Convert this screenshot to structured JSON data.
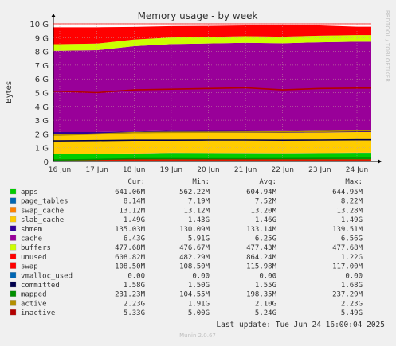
{
  "chart_data": {
    "type": "area",
    "title": "Memory usage - by week",
    "ylabel": "Bytes",
    "side_label": "RRDTOOL / TOBI OETIKER",
    "ylim": [
      0,
      10
    ],
    "yunit": "G",
    "yticks": [
      "0",
      "1 G",
      "2 G",
      "3 G",
      "4 G",
      "5 G",
      "6 G",
      "7 G",
      "8 G",
      "9 G",
      "10 G"
    ],
    "x": [
      "16 Jun",
      "17 Jun",
      "18 Jun",
      "19 Jun",
      "20 Jun",
      "21 Jun",
      "22 Jun",
      "23 Jun",
      "24 Jun"
    ],
    "stack_series": [
      {
        "name": "apps",
        "color": "#00cc00",
        "values": [
          0.56,
          0.55,
          0.57,
          0.62,
          0.61,
          0.6,
          0.59,
          0.61,
          0.63
        ]
      },
      {
        "name": "page_tables",
        "color": "#0066b3",
        "values": [
          0.007,
          0.007,
          0.007,
          0.0075,
          0.0075,
          0.0075,
          0.0075,
          0.0075,
          0.008
        ]
      },
      {
        "name": "swap_cache",
        "color": "#ff8000",
        "values": [
          0.013,
          0.013,
          0.013,
          0.013,
          0.013,
          0.013,
          0.013,
          0.013,
          0.013
        ]
      },
      {
        "name": "slab_cache",
        "color": "#ffcc00",
        "values": [
          1.43,
          1.44,
          1.46,
          1.46,
          1.46,
          1.47,
          1.47,
          1.48,
          1.49
        ]
      },
      {
        "name": "shmem",
        "color": "#330099",
        "values": [
          0.13,
          0.131,
          0.132,
          0.133,
          0.133,
          0.134,
          0.134,
          0.135,
          0.135
        ]
      },
      {
        "name": "cache",
        "color": "#990099",
        "values": [
          5.91,
          5.95,
          6.2,
          6.3,
          6.35,
          6.4,
          6.38,
          6.42,
          6.43
        ]
      },
      {
        "name": "buffers",
        "color": "#ccff00",
        "values": [
          0.477,
          0.477,
          0.477,
          0.477,
          0.477,
          0.477,
          0.477,
          0.478,
          0.478
        ]
      },
      {
        "name": "unused",
        "color": "#ff0000",
        "values": [
          1.22,
          1.18,
          0.92,
          0.82,
          0.8,
          0.78,
          0.82,
          0.74,
          0.61
        ]
      }
    ],
    "line_series": [
      {
        "name": "swap",
        "color": "#ff0000",
        "values": [
          0.1085,
          0.1085,
          0.1085,
          0.1085,
          0.1085,
          0.1085,
          0.1085,
          0.1085,
          0.1085
        ]
      },
      {
        "name": "committed",
        "color": "#00004d",
        "values": [
          1.5,
          1.52,
          1.55,
          1.55,
          1.56,
          1.56,
          1.55,
          1.56,
          1.58
        ]
      },
      {
        "name": "mapped",
        "color": "#008f00",
        "values": [
          0.105,
          0.15,
          0.2,
          0.21,
          0.2,
          0.2,
          0.21,
          0.22,
          0.231
        ]
      },
      {
        "name": "active",
        "color": "#b38f00",
        "values": [
          1.91,
          2.0,
          2.1,
          2.12,
          2.13,
          2.14,
          2.15,
          2.18,
          2.23
        ]
      },
      {
        "name": "inactive",
        "color": "#b30000",
        "values": [
          5.1,
          5.0,
          5.2,
          5.25,
          5.3,
          5.35,
          5.2,
          5.3,
          5.33
        ]
      }
    ],
    "grid": true,
    "legend_placement": "bottom",
    "legend_header": [
      "",
      "Cur:",
      "Min:",
      "Avg:",
      "Max:"
    ],
    "legend": [
      {
        "name": "apps",
        "color": "#00cc00",
        "cur": "641.06M",
        "min": "562.22M",
        "avg": "604.94M",
        "max": "644.95M"
      },
      {
        "name": "page_tables",
        "color": "#0066b3",
        "cur": "8.14M",
        "min": "7.19M",
        "avg": "7.52M",
        "max": "8.22M"
      },
      {
        "name": "swap_cache",
        "color": "#ff8000",
        "cur": "13.12M",
        "min": "13.12M",
        "avg": "13.20M",
        "max": "13.28M"
      },
      {
        "name": "slab_cache",
        "color": "#ffcc00",
        "cur": "1.49G",
        "min": "1.43G",
        "avg": "1.46G",
        "max": "1.49G"
      },
      {
        "name": "shmem",
        "color": "#330099",
        "cur": "135.03M",
        "min": "130.09M",
        "avg": "133.14M",
        "max": "139.51M"
      },
      {
        "name": "cache",
        "color": "#990099",
        "cur": "6.43G",
        "min": "5.91G",
        "avg": "6.25G",
        "max": "6.56G"
      },
      {
        "name": "buffers",
        "color": "#ccff00",
        "cur": "477.68M",
        "min": "476.67M",
        "avg": "477.43M",
        "max": "477.68M"
      },
      {
        "name": "unused",
        "color": "#ff0000",
        "cur": "608.82M",
        "min": "482.29M",
        "avg": "864.24M",
        "max": "1.22G"
      },
      {
        "name": "swap",
        "color": "#ff0000",
        "cur": "108.50M",
        "min": "108.50M",
        "avg": "115.98M",
        "max": "117.00M"
      },
      {
        "name": "vmalloc_used",
        "color": "#0066b3",
        "cur": "0.00",
        "min": "0.00",
        "avg": "0.00",
        "max": "0.00"
      },
      {
        "name": "committed",
        "color": "#00004d",
        "cur": "1.58G",
        "min": "1.50G",
        "avg": "1.55G",
        "max": "1.68G"
      },
      {
        "name": "mapped",
        "color": "#008f00",
        "cur": "231.23M",
        "min": "104.55M",
        "avg": "198.35M",
        "max": "237.29M"
      },
      {
        "name": "active",
        "color": "#b38f00",
        "cur": "2.23G",
        "min": "1.91G",
        "avg": "2.10G",
        "max": "2.23G"
      },
      {
        "name": "inactive",
        "color": "#b30000",
        "cur": "5.33G",
        "min": "5.00G",
        "avg": "5.24G",
        "max": "5.49G"
      }
    ],
    "last_update": "Last update: Tue Jun 24 16:00:04 2025",
    "footer": "Munin 2.0.67"
  }
}
